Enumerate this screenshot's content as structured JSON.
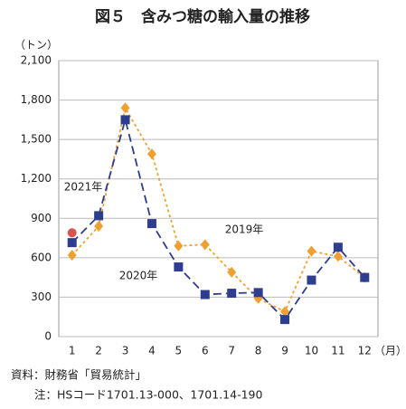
{
  "chart_data": {
    "type": "line",
    "title": "図５　含みつ糖の輸入量の推移",
    "y_unit": "（トン）",
    "x_unit": "（月）",
    "source": "資料：財務省「貿易統計」",
    "note": "注：HSコード1701.13-000、1701.14-190",
    "categories": [
      "1",
      "2",
      "3",
      "4",
      "5",
      "6",
      "7",
      "8",
      "9",
      "10",
      "11",
      "12"
    ],
    "series": [
      {
        "name": "2019年",
        "color": "#f0a030",
        "marker": "diamond",
        "dash": "3,3",
        "values": [
          620,
          840,
          1740,
          1390,
          690,
          700,
          490,
          290,
          190,
          650,
          610,
          450
        ]
      },
      {
        "name": "2020年",
        "color": "#2e3d8f",
        "marker": "square",
        "dash": "9,5",
        "values": [
          715,
          920,
          1650,
          860,
          530,
          320,
          330,
          335,
          130,
          430,
          680,
          450
        ]
      },
      {
        "name": "2021年",
        "color": "#d9534f",
        "marker": "circle",
        "values": [
          790,
          null,
          null,
          null,
          null,
          null,
          null,
          null,
          null,
          null,
          null,
          null
        ]
      }
    ],
    "ylim": [
      0,
      2100
    ],
    "yticks": [
      0,
      300,
      600,
      900,
      {
        "value": 1200,
        "label": "1,200"
      },
      {
        "value": 1500,
        "label": "1,500"
      },
      {
        "value": 1800,
        "label": "1,800"
      },
      {
        "value": 2100,
        "label": "2,100"
      }
    ],
    "grid": true
  }
}
